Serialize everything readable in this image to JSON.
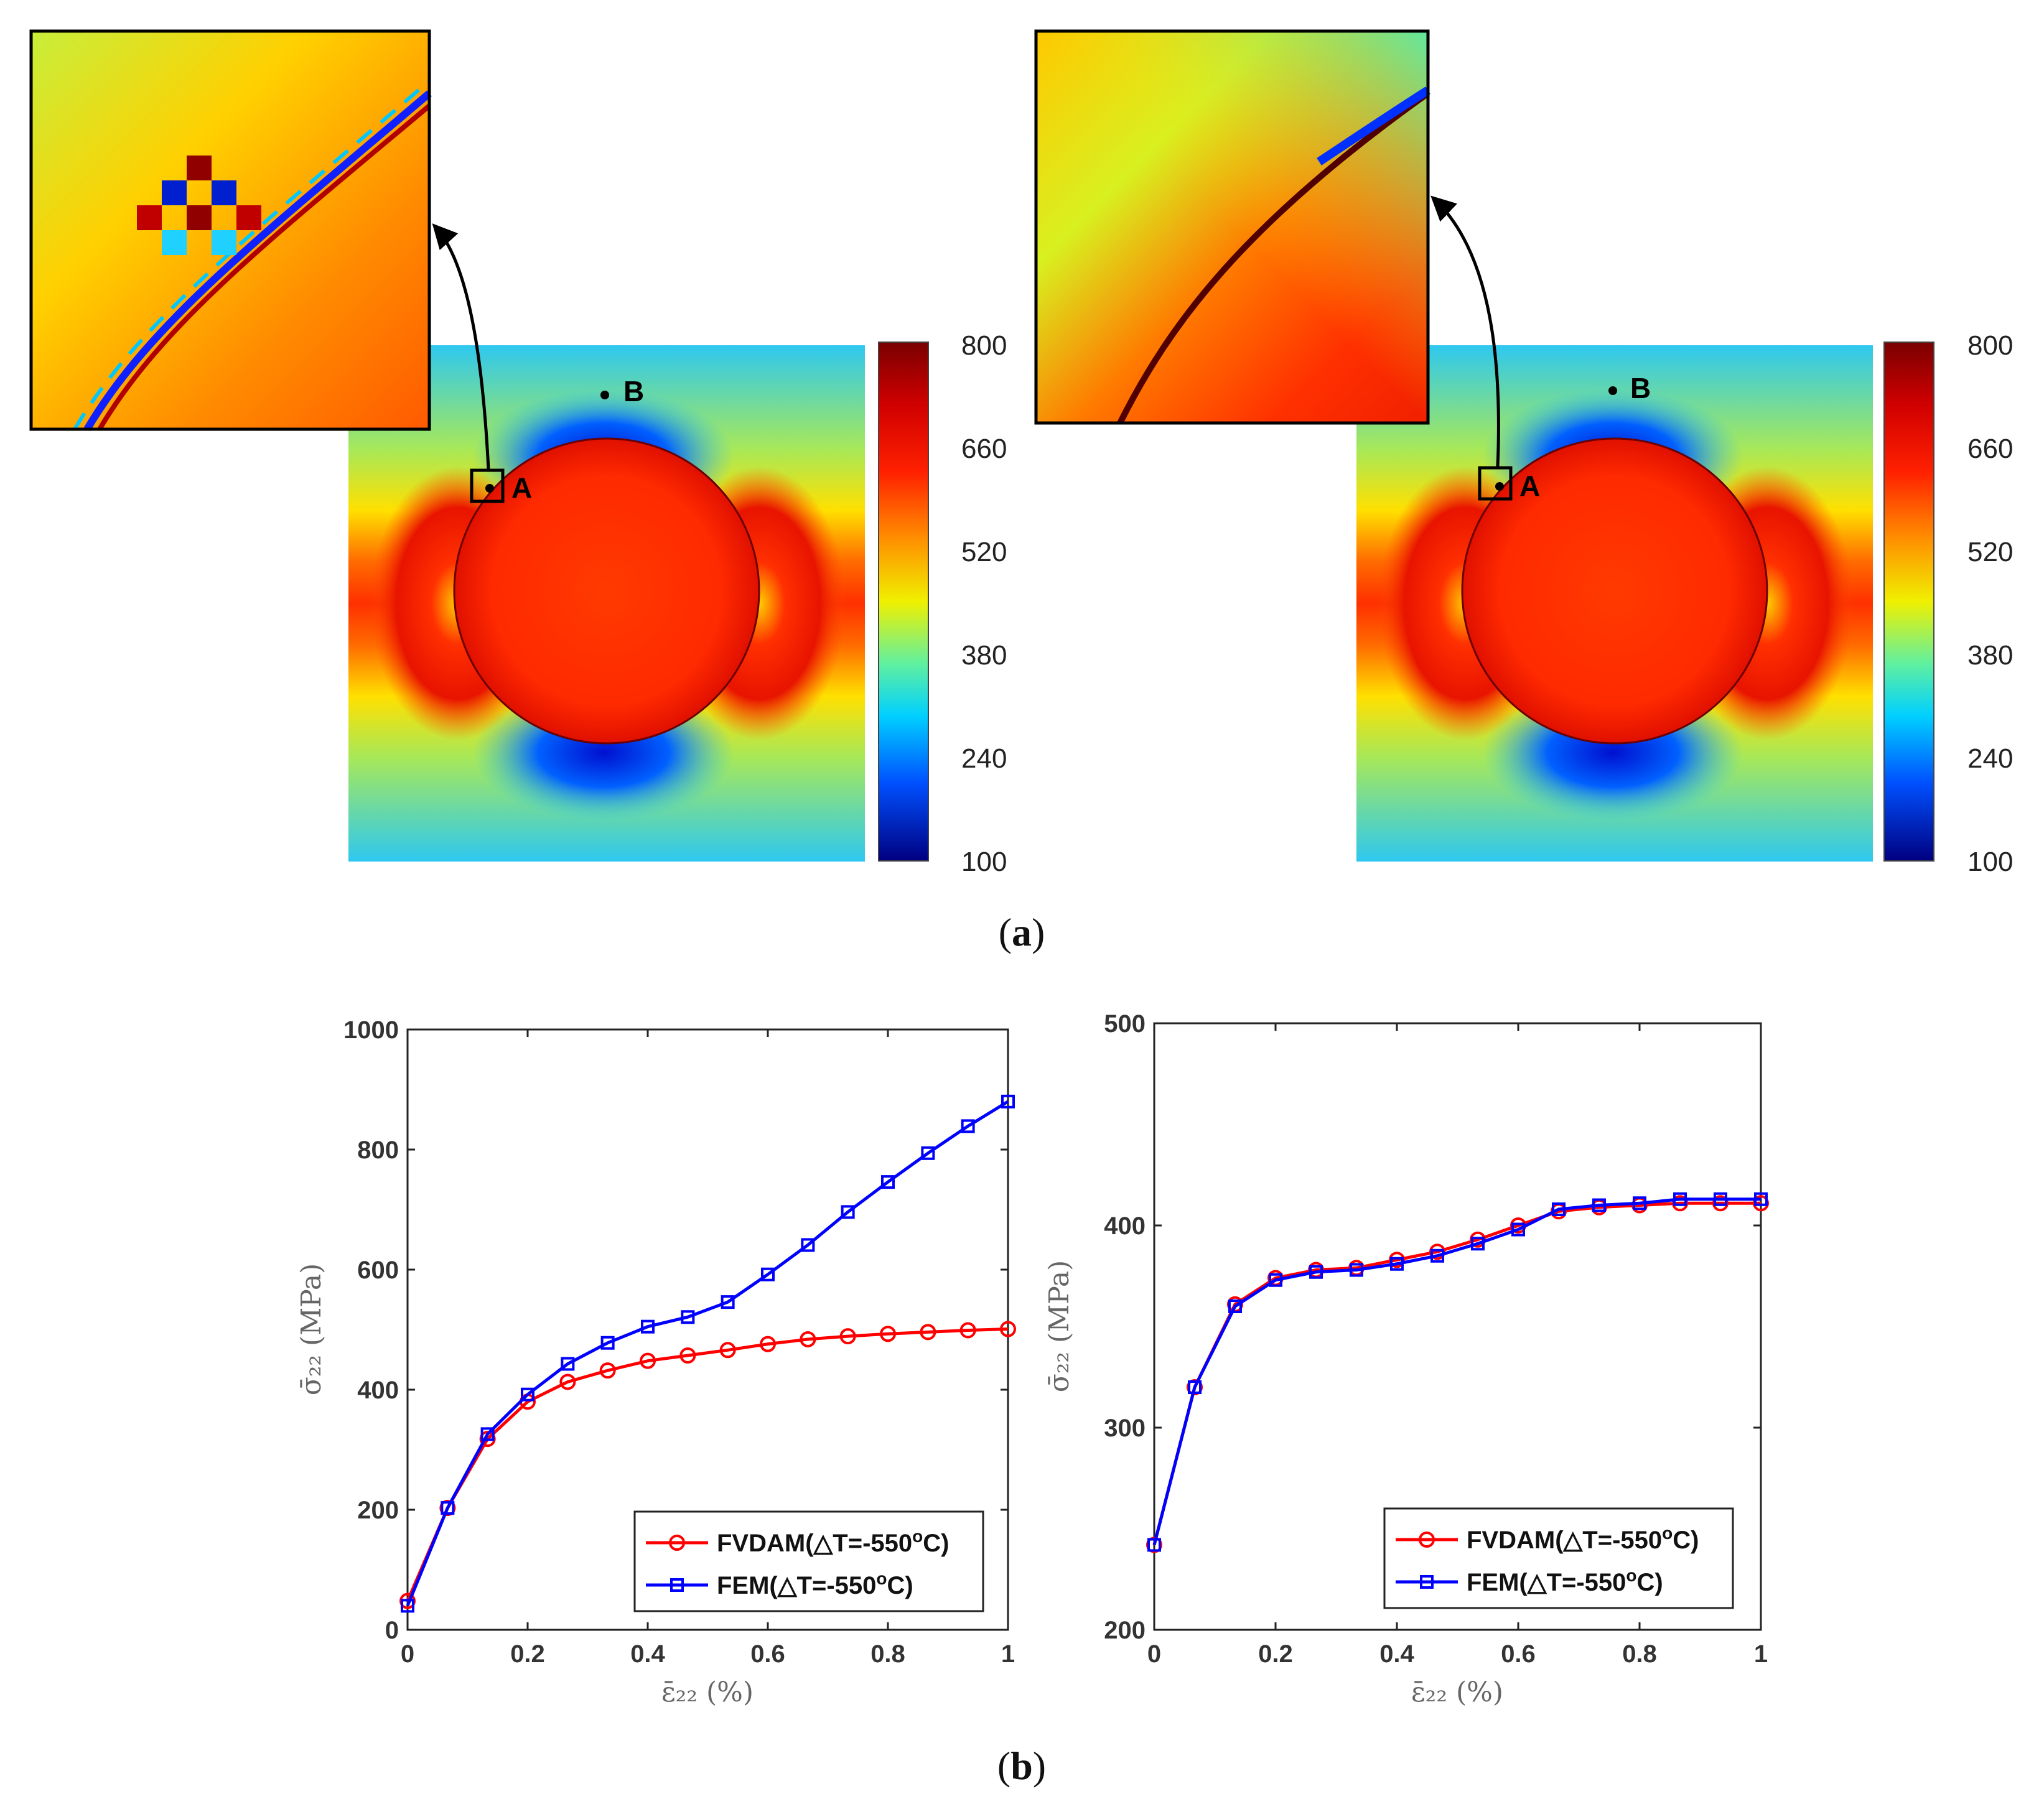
{
  "captions": {
    "a": "a",
    "b": "b"
  },
  "contour_panels": [
    {
      "colorbar_ticks": [
        "800",
        "660",
        "520",
        "380",
        "240",
        "100"
      ],
      "point_a": "A",
      "point_b": "B"
    },
    {
      "colorbar_ticks": [
        "800",
        "660",
        "520",
        "380",
        "240",
        "100"
      ],
      "point_a": "A",
      "point_b": "B"
    }
  ],
  "chart_data": [
    {
      "type": "line",
      "xlabel": "ε̄₂₂ (%)",
      "ylabel": "σ̄₂₂ (MPa)",
      "xlim": [
        0,
        1
      ],
      "ylim": [
        0,
        1000
      ],
      "xticks": [
        "0",
        "0.2",
        "0.4",
        "0.6",
        "0.8",
        "1"
      ],
      "yticks": [
        "0",
        "200",
        "400",
        "600",
        "800",
        "1000"
      ],
      "x": [
        0,
        0.0667,
        0.1333,
        0.2,
        0.2667,
        0.3333,
        0.4,
        0.4667,
        0.5333,
        0.6,
        0.6667,
        0.7333,
        0.8,
        0.8667,
        0.9333,
        1.0
      ],
      "series": [
        {
          "name": "FVDAM(△T=-550°C)",
          "color": "#ff0000",
          "marker": "circle",
          "values": [
            48,
            203,
            318,
            380,
            413,
            432,
            448,
            457,
            466,
            476,
            484,
            489,
            493,
            496,
            499,
            501
          ]
        },
        {
          "name": "FEM(△T=-550°C)",
          "color": "#0000ff",
          "marker": "square",
          "values": [
            40,
            203,
            326,
            392,
            443,
            478,
            505,
            521,
            546,
            592,
            641,
            696,
            746,
            794,
            839,
            880
          ]
        }
      ],
      "legend": [
        {
          "label": "FVDAM(",
          "sym": "△",
          "rest": "T=-550",
          "sup": "o",
          "end": "C)"
        },
        {
          "label": "FEM(",
          "sym": "△",
          "rest": "T=-550",
          "sup": "o",
          "end": "C)"
        }
      ],
      "legend_position": "bottom-right"
    },
    {
      "type": "line",
      "xlabel": "ε̄₂₂ (%)",
      "ylabel": "σ̄₂₂ (MPa)",
      "xlim": [
        0,
        1
      ],
      "ylim": [
        200,
        500
      ],
      "xticks": [
        "0",
        "0.2",
        "0.4",
        "0.6",
        "0.8",
        "1"
      ],
      "yticks": [
        "200",
        "300",
        "400",
        "500"
      ],
      "x": [
        0,
        0.0667,
        0.1333,
        0.2,
        0.2667,
        0.3333,
        0.4,
        0.4667,
        0.5333,
        0.6,
        0.6667,
        0.7333,
        0.8,
        0.8667,
        0.9333,
        1.0
      ],
      "series": [
        {
          "name": "FVDAM(△T=-550°C)",
          "color": "#ff0000",
          "marker": "circle",
          "values": [
            242,
            320,
            361,
            374,
            378,
            379,
            383,
            387,
            393,
            400,
            407,
            409,
            410,
            411,
            411,
            411
          ]
        },
        {
          "name": "FEM(△T=-550°C)",
          "color": "#0000ff",
          "marker": "square",
          "values": [
            242,
            320,
            360,
            373,
            377,
            378,
            381,
            385,
            391,
            398,
            408,
            410,
            411,
            413,
            413,
            413
          ]
        }
      ],
      "legend": [
        {
          "label": "FVDAM(",
          "sym": "△",
          "rest": "T=-550",
          "sup": "o",
          "end": "C)"
        },
        {
          "label": "FEM(",
          "sym": "△",
          "rest": "T=-550",
          "sup": "o",
          "end": "C)"
        }
      ],
      "legend_position": "bottom-right"
    }
  ]
}
